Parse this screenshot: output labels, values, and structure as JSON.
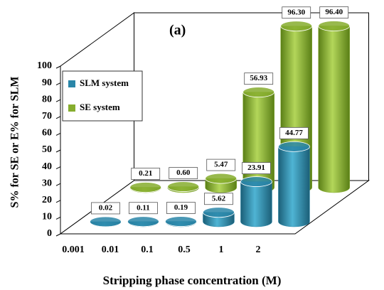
{
  "chart_data": {
    "type": "bar3d",
    "title": "(a)",
    "x_label": "Stripping phase concentration (M)",
    "y_label": "S% for SE or E% for SLM",
    "categories": [
      "0.001",
      "0.01",
      "0.1",
      "0.5",
      "1",
      "2"
    ],
    "series": [
      {
        "name": "SLM system",
        "color": "#2a86a8",
        "values": [
          0.02,
          0.11,
          0.19,
          5.62,
          23.91,
          44.77
        ],
        "value_labels": [
          "0.02",
          "0.11",
          "0.19",
          "5.62",
          "23.91",
          "44.77"
        ]
      },
      {
        "name": "SE system",
        "color": "#86ad2e",
        "values": [
          0.21,
          0.6,
          5.47,
          56.93,
          96.3,
          96.4
        ],
        "value_labels": [
          "0.21",
          "0.60",
          "5.47",
          "56.93",
          "96.30",
          "96.40"
        ]
      }
    ],
    "ylim": [
      0,
      100
    ],
    "yticks": [
      0,
      10,
      20,
      30,
      40,
      50,
      60,
      70,
      80,
      90,
      100
    ]
  }
}
